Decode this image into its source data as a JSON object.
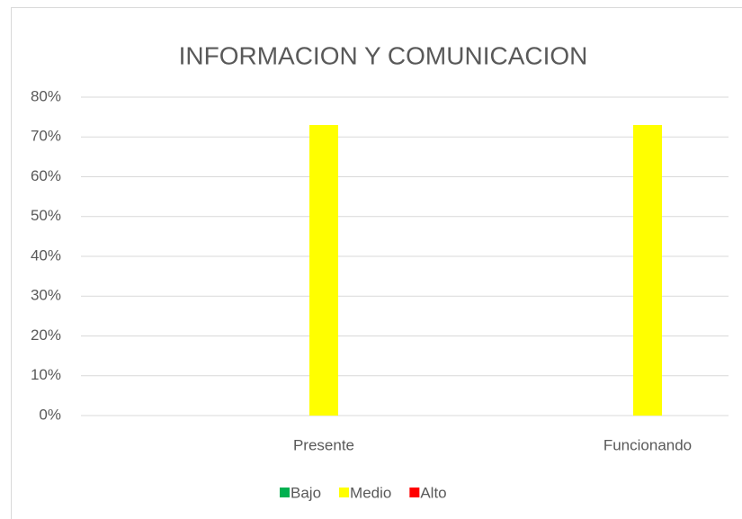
{
  "chart_data": {
    "type": "bar",
    "title": "INFORMACION Y COMUNICACION",
    "categories": [
      null,
      "Presente",
      null,
      "Funcionando"
    ],
    "series": [
      {
        "name": "Bajo",
        "color": "#00b050",
        "values": [
          null,
          0,
          null,
          0
        ]
      },
      {
        "name": "Medio",
        "color": "#ffff00",
        "values": [
          null,
          73,
          null,
          73
        ]
      },
      {
        "name": "Alto",
        "color": "#ff0000",
        "values": [
          null,
          0,
          null,
          0
        ]
      }
    ],
    "ylim": [
      0,
      80
    ],
    "yticks": [
      {
        "value": 0,
        "label": "0%"
      },
      {
        "value": 10,
        "label": "10%"
      },
      {
        "value": 20,
        "label": "20%"
      },
      {
        "value": 30,
        "label": "30%"
      },
      {
        "value": 40,
        "label": "40%"
      },
      {
        "value": 50,
        "label": "50%"
      },
      {
        "value": 60,
        "label": "60%"
      },
      {
        "value": 70,
        "label": "70%"
      },
      {
        "value": 80,
        "label": "80%"
      }
    ],
    "grid": true,
    "legend": "bottom"
  }
}
